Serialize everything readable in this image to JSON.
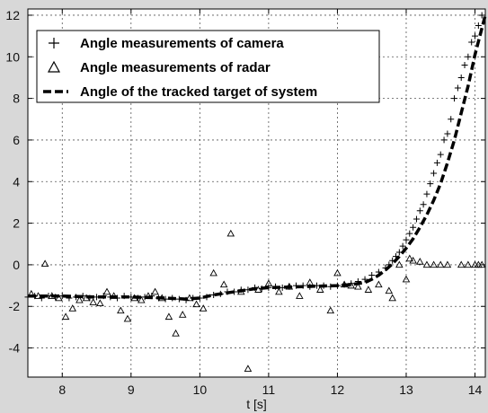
{
  "chart_data": {
    "type": "scatter",
    "title": "",
    "xlabel": "t [s]",
    "ylabel": "",
    "xlim": [
      7.5,
      14.15
    ],
    "ylim": [
      -5.4,
      12.3
    ],
    "xticks": [
      8,
      9,
      10,
      11,
      12,
      13,
      14
    ],
    "yticks": [
      -4,
      -2,
      0,
      2,
      4,
      6,
      8,
      10,
      12
    ],
    "grid": true,
    "legend_position": "top-left",
    "colors": {
      "plot_bg": "#ffffff",
      "figure_bg": "#d8d8d8",
      "ink": "#000000",
      "grid": "#555555"
    },
    "series": [
      {
        "name": "Angle measurements of camera",
        "marker": "plus",
        "x": [
          7.5,
          7.6,
          7.7,
          7.8,
          7.9,
          8.0,
          8.1,
          8.2,
          8.3,
          8.4,
          8.5,
          8.6,
          8.7,
          8.8,
          8.9,
          9.0,
          9.1,
          9.2,
          9.3,
          9.4,
          9.5,
          9.6,
          9.7,
          9.8,
          9.9,
          10.0,
          10.1,
          10.2,
          10.3,
          10.4,
          10.5,
          10.6,
          10.7,
          10.8,
          10.9,
          11.0,
          11.1,
          11.2,
          11.3,
          11.4,
          11.5,
          11.6,
          11.7,
          11.8,
          11.9,
          12.0,
          12.1,
          12.2,
          12.3,
          12.4,
          12.5,
          12.6,
          12.7,
          12.75,
          12.8,
          12.85,
          12.9,
          12.95,
          13.0,
          13.05,
          13.1,
          13.15,
          13.2,
          13.25,
          13.3,
          13.35,
          13.4,
          13.45,
          13.5,
          13.55,
          13.6,
          13.65,
          13.7,
          13.75,
          13.8,
          13.85,
          13.9,
          13.95,
          14.0,
          14.05,
          14.1
        ],
        "values": [
          -1.55,
          -1.5,
          -1.6,
          -1.5,
          -1.55,
          -1.5,
          -1.6,
          -1.55,
          -1.5,
          -1.6,
          -1.55,
          -1.5,
          -1.55,
          -1.6,
          -1.5,
          -1.55,
          -1.6,
          -1.55,
          -1.5,
          -1.6,
          -1.65,
          -1.6,
          -1.65,
          -1.7,
          -1.6,
          -1.6,
          -1.55,
          -1.45,
          -1.4,
          -1.3,
          -1.3,
          -1.2,
          -1.2,
          -1.1,
          -1.15,
          -1.1,
          -1.05,
          -1.1,
          -1.05,
          -1.0,
          -1.0,
          -1.05,
          -1.0,
          -1.0,
          -1.05,
          -1.0,
          -0.95,
          -0.9,
          -0.8,
          -0.7,
          -0.5,
          -0.35,
          -0.15,
          0.0,
          0.2,
          0.4,
          0.6,
          0.9,
          1.2,
          1.5,
          1.8,
          2.2,
          2.6,
          2.9,
          3.4,
          3.9,
          4.4,
          4.9,
          5.3,
          6.0,
          6.3,
          7.0,
          8.0,
          8.5,
          9.0,
          9.6,
          10.0,
          10.7,
          11.0,
          11.5,
          12.0
        ]
      },
      {
        "name": "Angle measurements of radar",
        "marker": "triangle",
        "x": [
          7.55,
          7.65,
          7.75,
          7.85,
          7.95,
          8.05,
          8.15,
          8.25,
          8.35,
          8.45,
          8.55,
          8.65,
          8.75,
          8.85,
          8.95,
          9.05,
          9.15,
          9.25,
          9.35,
          9.45,
          9.55,
          9.65,
          9.75,
          9.85,
          9.95,
          10.05,
          10.2,
          10.35,
          10.45,
          10.6,
          10.7,
          10.85,
          11.0,
          11.15,
          11.3,
          11.45,
          11.6,
          11.75,
          11.9,
          12.0,
          12.1,
          12.2,
          12.3,
          12.45,
          12.6,
          12.75,
          12.8,
          12.9,
          13.0,
          13.05,
          13.1,
          13.2,
          13.3,
          13.4,
          13.5,
          13.6,
          13.8,
          13.9,
          14.0,
          14.05,
          14.1
        ],
        "values": [
          -1.4,
          -1.5,
          0.05,
          -1.5,
          -1.6,
          -2.5,
          -2.1,
          -1.7,
          -1.6,
          -1.8,
          -1.85,
          -1.3,
          -1.5,
          -2.2,
          -2.6,
          -1.6,
          -1.7,
          -1.5,
          -1.3,
          -1.6,
          -2.5,
          -3.3,
          -2.4,
          -1.6,
          -1.9,
          -2.1,
          -0.4,
          -0.95,
          1.5,
          -1.3,
          -5.0,
          -1.2,
          -0.9,
          -1.3,
          -1.05,
          -1.5,
          -0.85,
          -1.2,
          -2.2,
          -0.4,
          -0.95,
          -1.0,
          -1.05,
          -1.2,
          -0.95,
          -1.25,
          -1.6,
          0.0,
          -0.7,
          0.3,
          0.2,
          0.15,
          0.0,
          0.0,
          0.0,
          0.0,
          0.0,
          0.0,
          0.0,
          0.0,
          0.0
        ]
      },
      {
        "name": "Angle of the tracked target of system",
        "marker": "dashed-line",
        "x": [
          7.5,
          8.0,
          8.5,
          9.0,
          9.5,
          9.8,
          10.0,
          10.2,
          10.5,
          10.8,
          11.0,
          11.5,
          12.0,
          12.2,
          12.4,
          12.5,
          12.6,
          12.7,
          12.8,
          12.9,
          13.0,
          13.1,
          13.2,
          13.3,
          13.4,
          13.5,
          13.6,
          13.7,
          13.8,
          13.9,
          14.0,
          14.15
        ],
        "values": [
          -1.5,
          -1.5,
          -1.55,
          -1.55,
          -1.6,
          -1.65,
          -1.6,
          -1.45,
          -1.3,
          -1.15,
          -1.1,
          -1.05,
          -1.0,
          -0.95,
          -0.85,
          -0.7,
          -0.5,
          -0.25,
          0.05,
          0.4,
          0.8,
          1.25,
          1.8,
          2.4,
          3.1,
          3.9,
          4.9,
          6.0,
          7.3,
          8.6,
          10.1,
          12.0
        ]
      }
    ]
  }
}
